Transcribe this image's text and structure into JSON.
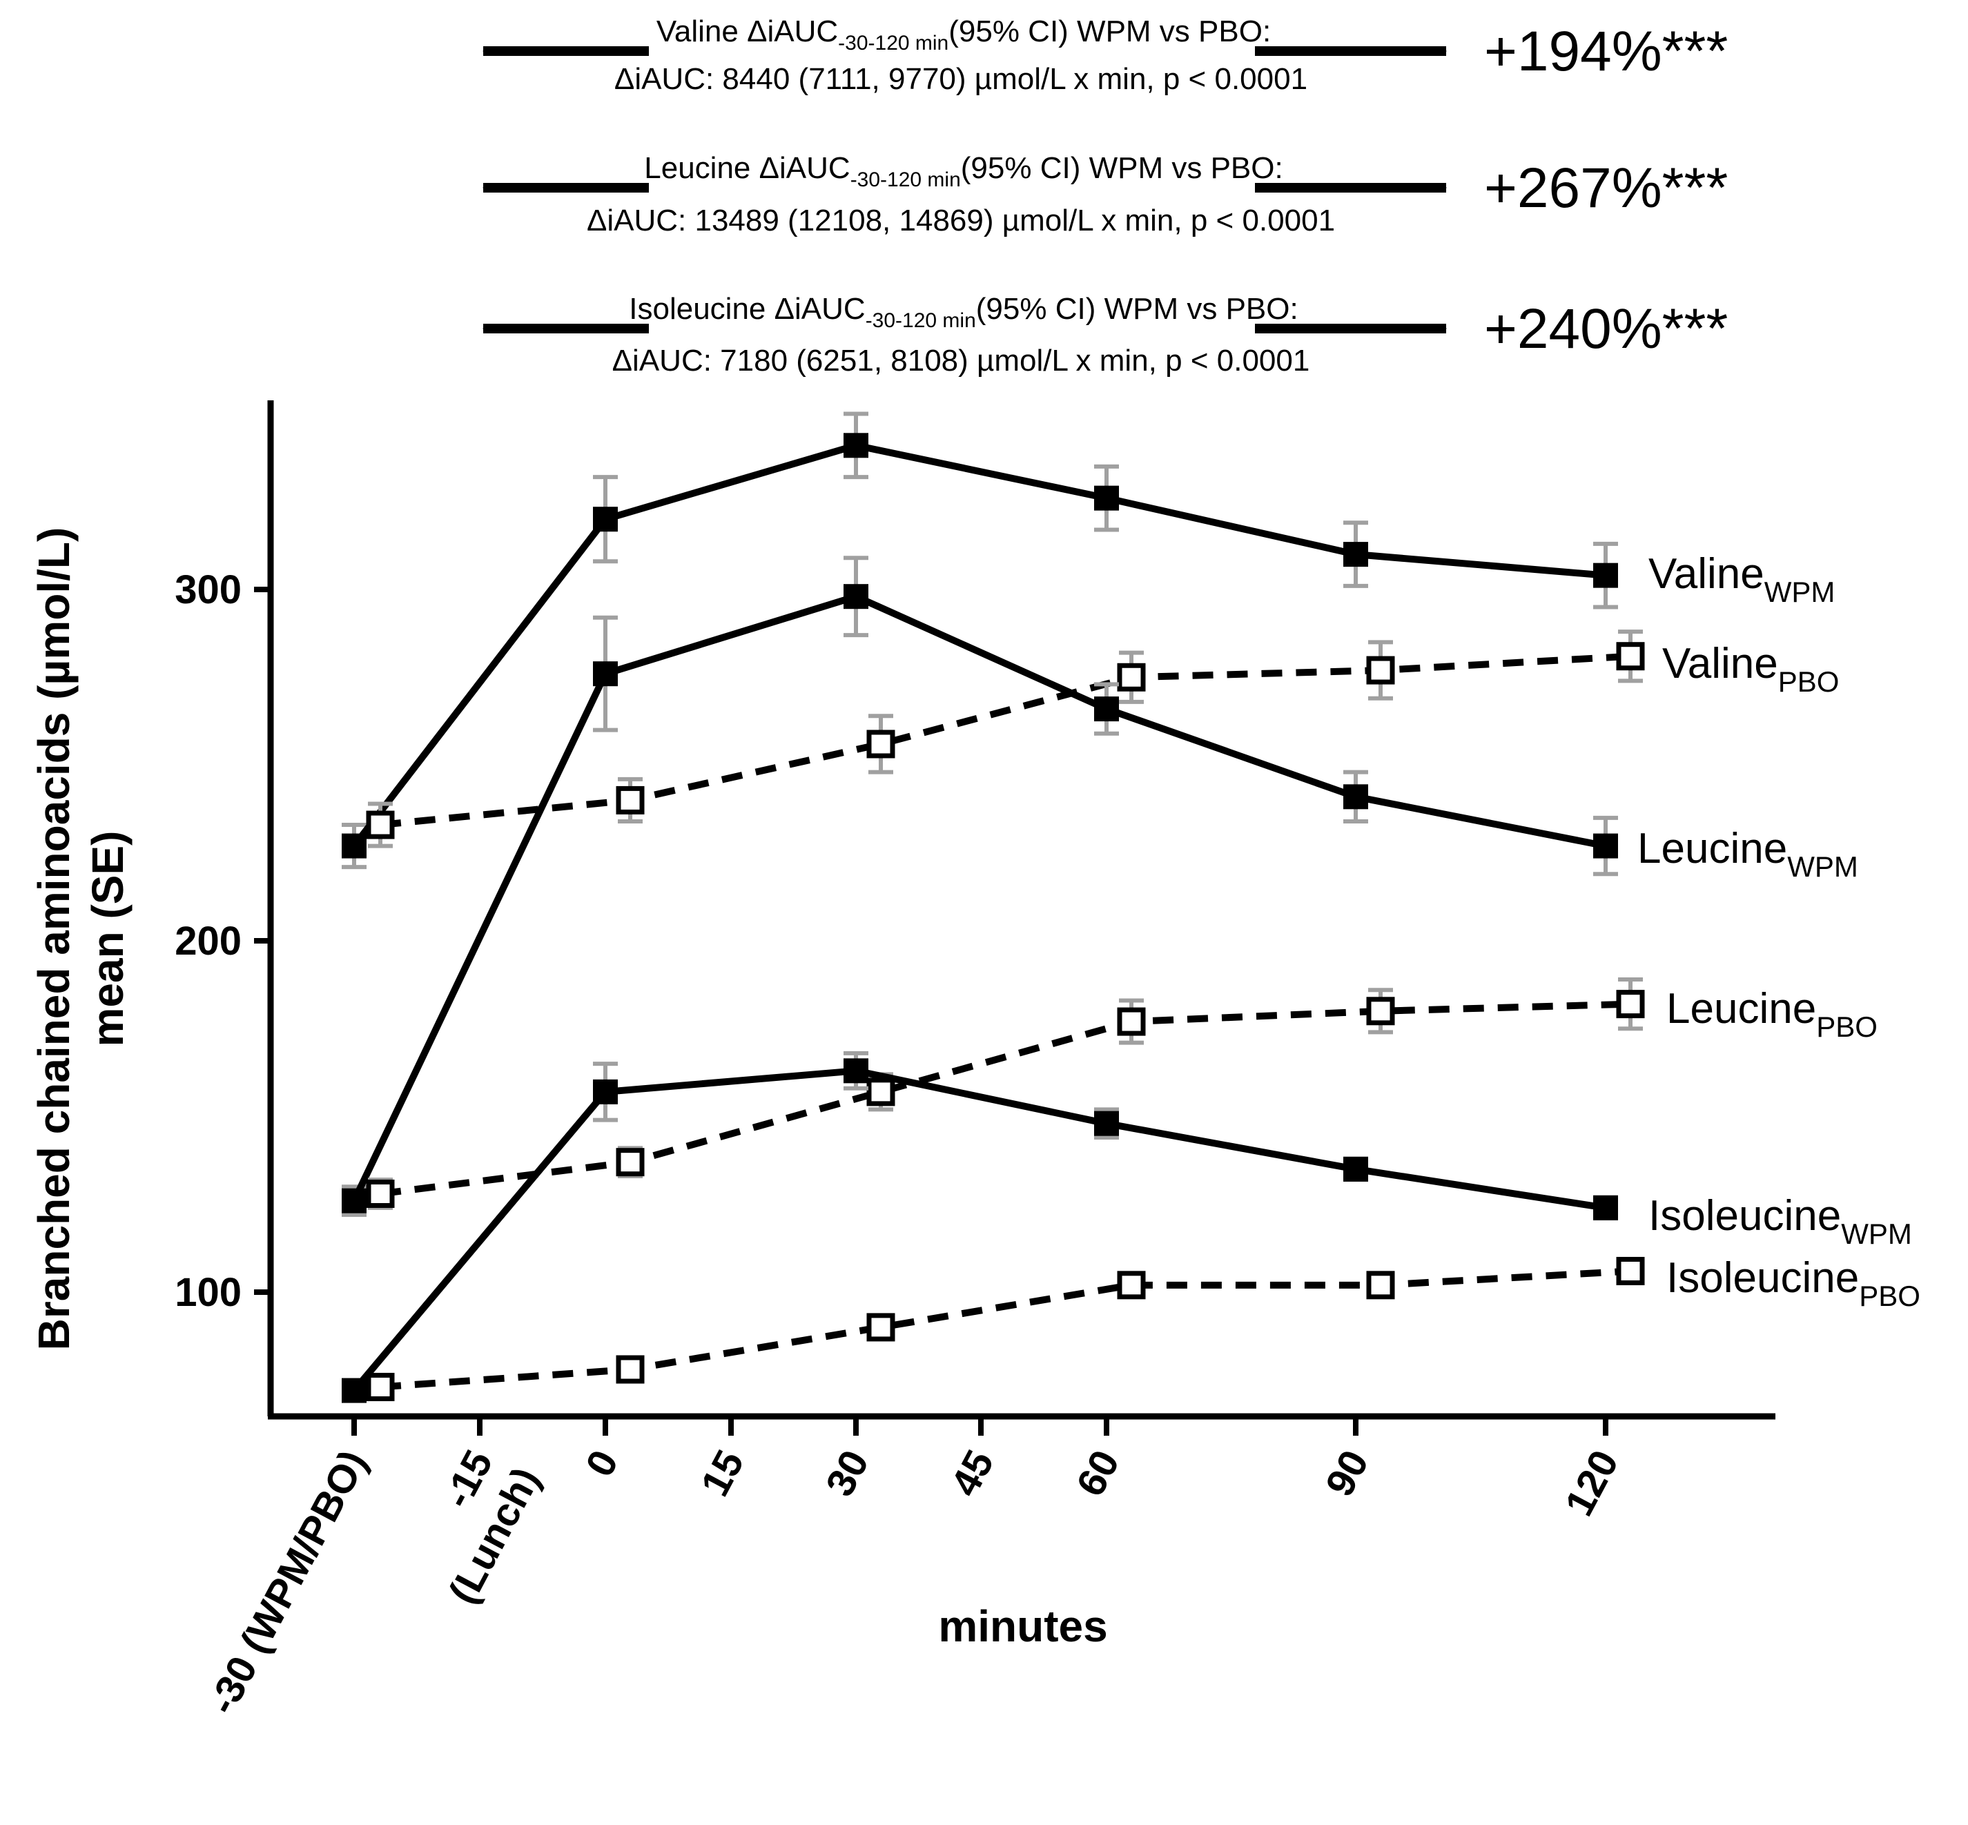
{
  "chart_data": {
    "type": "line",
    "xlabel": "minutes",
    "ylabel_line1": "Branched chained aminoacids (µmol/L)",
    "ylabel_line2": "mean (SE)",
    "ylim": [
      64,
      355
    ],
    "yticks": [
      100,
      200,
      300
    ],
    "ytick_labels": [
      "100",
      "200",
      "300"
    ],
    "xticks": [
      -30,
      -15,
      0,
      15,
      30,
      45,
      60,
      90,
      120
    ],
    "xtick_labels": [
      "-30 (WPM/PBO)",
      "-15",
      "0",
      "15",
      "30",
      "45",
      "60",
      "90",
      "120"
    ],
    "xtick_sublabels": [
      "",
      "(Lunch)",
      "",
      "",
      "",
      "",
      "",
      "",
      ""
    ],
    "series": [
      {
        "name": "Valine",
        "group": "WPM",
        "style": "solid",
        "marker": "filled-square",
        "x": [
          -30,
          0,
          30,
          60,
          90,
          120
        ],
        "values": [
          227,
          320,
          341,
          326,
          310,
          304
        ],
        "se": [
          6,
          12,
          9,
          9,
          9,
          9
        ]
      },
      {
        "name": "Valine",
        "group": "PBO",
        "style": "dashed",
        "marker": "open-square",
        "x": [
          -30,
          0,
          30,
          60,
          90,
          120
        ],
        "values": [
          233,
          240,
          256,
          275,
          277,
          281
        ],
        "se": [
          6,
          6,
          8,
          7,
          8,
          7
        ]
      },
      {
        "name": "Leucine",
        "group": "WPM",
        "style": "solid",
        "marker": "filled-square",
        "x": [
          -30,
          0,
          30,
          60,
          90,
          120
        ],
        "values": [
          126,
          276,
          298,
          266,
          241,
          227
        ],
        "se": [
          4,
          16,
          11,
          7,
          7,
          8
        ]
      },
      {
        "name": "Leucine",
        "group": "PBO",
        "style": "dashed",
        "marker": "open-square",
        "x": [
          -30,
          0,
          30,
          60,
          90,
          120
        ],
        "values": [
          128,
          137,
          157,
          177,
          180,
          182
        ],
        "se": [
          4,
          4,
          5,
          6,
          6,
          7
        ]
      },
      {
        "name": "Isoleucine",
        "group": "WPM",
        "style": "solid",
        "marker": "filled-square",
        "x": [
          -30,
          0,
          30,
          60,
          90,
          120
        ],
        "values": [
          72,
          157,
          163,
          148,
          135,
          124
        ],
        "se": [
          2,
          8,
          5,
          4,
          3,
          3
        ]
      },
      {
        "name": "Isoleucine",
        "group": "PBO",
        "style": "dashed",
        "marker": "open-square",
        "x": [
          -30,
          0,
          30,
          60,
          90,
          120
        ],
        "values": [
          73,
          78,
          90,
          102,
          102,
          106
        ],
        "se": [
          2,
          2,
          3,
          3,
          2,
          2
        ]
      }
    ],
    "annotations": [
      {
        "line1_pre": "Valine ΔiAUC",
        "line1_sub": "-30-120 min",
        "line1_post": "(95% CI) WPM vs PBO:",
        "line2": "ΔiAUC:  8440 (7111, 9770) µmol/L x min, p < 0.0001",
        "percent": "+194%***"
      },
      {
        "line1_pre": "Leucine ΔiAUC",
        "line1_sub": "-30-120 min",
        "line1_post": "(95% CI) WPM vs PBO:",
        "line2": "ΔiAUC: 13489 (12108, 14869) µmol/L x min, p < 0.0001",
        "percent": "+267%***"
      },
      {
        "line1_pre": "Isoleucine ΔiAUC",
        "line1_sub": "-30-120 min",
        "line1_post": "(95% CI) WPM vs PBO:",
        "line2": "ΔiAUC: 7180 (6251, 8108) µmol/L x min, p < 0.0001",
        "percent": "+240%***"
      }
    ],
    "legend_placement": "right-inline",
    "grid": false
  },
  "colors": {
    "line": "#000000",
    "errorbar": "#a0a0a0",
    "background": "#ffffff"
  }
}
